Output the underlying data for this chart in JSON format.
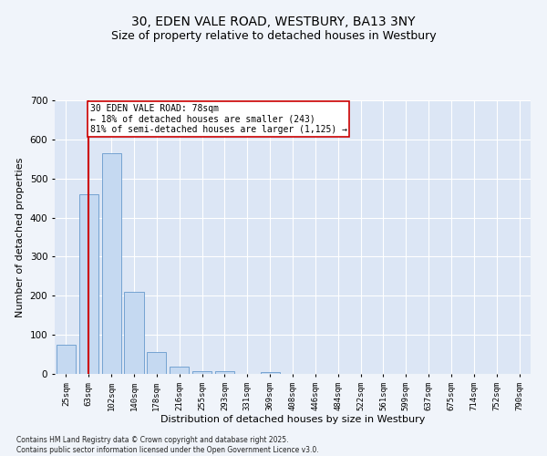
{
  "title": "30, EDEN VALE ROAD, WESTBURY, BA13 3NY",
  "subtitle": "Size of property relative to detached houses in Westbury",
  "xlabel": "Distribution of detached houses by size in Westbury",
  "ylabel": "Number of detached properties",
  "bar_values": [
    75,
    460,
    565,
    210,
    55,
    18,
    8,
    8,
    0,
    5,
    0,
    0,
    0,
    0,
    0,
    0,
    0,
    0,
    0,
    0,
    0
  ],
  "categories": [
    "25sqm",
    "63sqm",
    "102sqm",
    "140sqm",
    "178sqm",
    "216sqm",
    "255sqm",
    "293sqm",
    "331sqm",
    "369sqm",
    "408sqm",
    "446sqm",
    "484sqm",
    "522sqm",
    "561sqm",
    "599sqm",
    "637sqm",
    "675sqm",
    "714sqm",
    "752sqm",
    "790sqm"
  ],
  "bar_color": "#c5d9f1",
  "bar_edge_color": "#6699cc",
  "red_line_x": 1.0,
  "red_line_color": "#cc0000",
  "annotation_text": "30 EDEN VALE ROAD: 78sqm\n← 18% of detached houses are smaller (243)\n81% of semi-detached houses are larger (1,125) →",
  "annotation_box_color": "#ffffff",
  "annotation_box_edge": "#cc0000",
  "ylim": [
    0,
    700
  ],
  "yticks": [
    0,
    100,
    200,
    300,
    400,
    500,
    600,
    700
  ],
  "fig_background": "#f0f4fa",
  "plot_background": "#dce6f5",
  "footer_text": "Contains HM Land Registry data © Crown copyright and database right 2025.\nContains public sector information licensed under the Open Government Licence v3.0.",
  "title_fontsize": 10,
  "subtitle_fontsize": 9,
  "tick_fontsize": 6.5,
  "ylabel_fontsize": 8,
  "xlabel_fontsize": 8,
  "annotation_fontsize": 7,
  "footer_fontsize": 5.5
}
